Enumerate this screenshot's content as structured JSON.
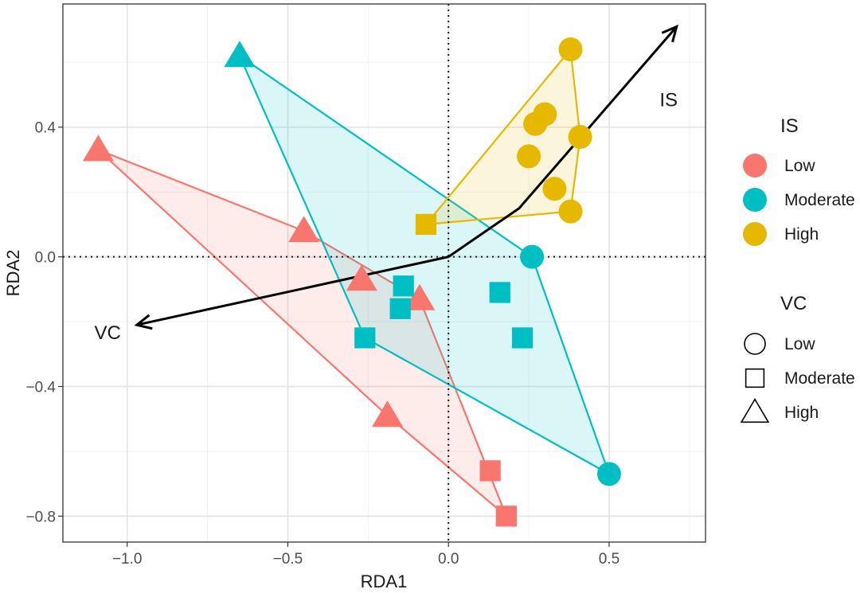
{
  "chart_data": {
    "type": "scatter",
    "title": "",
    "xlabel": "RDA1",
    "ylabel": "RDA2",
    "xlim": [
      -1.2,
      0.8
    ],
    "ylim": [
      -0.88,
      0.78
    ],
    "x_ticks": [
      -1.0,
      -0.5,
      0.0,
      0.5
    ],
    "x_tick_labels": [
      "−1.0",
      "−0.5",
      "0.0",
      "0.5"
    ],
    "y_ticks": [
      -0.8,
      -0.4,
      0.0,
      0.4
    ],
    "y_tick_labels": [
      "−0.8",
      "−0.4",
      "0.0",
      "0.4"
    ],
    "grid": true,
    "reference_lines": {
      "x": 0,
      "y": 0,
      "style": "dotted"
    },
    "groups": [
      {
        "name": "Low",
        "color": "#f8766d",
        "points": [
          {
            "x": -1.09,
            "y": 0.33,
            "shape": "High"
          },
          {
            "x": -0.45,
            "y": 0.08,
            "shape": "High"
          },
          {
            "x": -0.27,
            "y": -0.07,
            "shape": "High"
          },
          {
            "x": -0.09,
            "y": -0.13,
            "shape": "High"
          },
          {
            "x": -0.19,
            "y": -0.49,
            "shape": "High"
          },
          {
            "x": 0.13,
            "y": -0.66,
            "shape": "Moderate"
          },
          {
            "x": 0.18,
            "y": -0.8,
            "shape": "Moderate"
          }
        ],
        "hull": [
          [
            -1.09,
            0.33
          ],
          [
            -0.45,
            0.08
          ],
          [
            -0.09,
            -0.13
          ],
          [
            0.18,
            -0.8
          ],
          [
            -0.19,
            -0.49
          ]
        ]
      },
      {
        "name": "Moderate",
        "color": "#00bfc4",
        "points": [
          {
            "x": -0.65,
            "y": 0.62,
            "shape": "High"
          },
          {
            "x": 0.26,
            "y": 0.0,
            "shape": "Low"
          },
          {
            "x": 0.5,
            "y": -0.67,
            "shape": "Low"
          },
          {
            "x": -0.26,
            "y": -0.25,
            "shape": "Moderate"
          },
          {
            "x": -0.14,
            "y": -0.09,
            "shape": "Moderate"
          },
          {
            "x": -0.15,
            "y": -0.16,
            "shape": "Moderate"
          },
          {
            "x": 0.16,
            "y": -0.11,
            "shape": "Moderate"
          },
          {
            "x": 0.23,
            "y": -0.25,
            "shape": "Moderate"
          }
        ],
        "hull": [
          [
            -0.65,
            0.62
          ],
          [
            0.26,
            0.0
          ],
          [
            0.5,
            -0.67
          ],
          [
            -0.26,
            -0.25
          ]
        ]
      },
      {
        "name": "High",
        "color": "#e6b800",
        "points": [
          {
            "x": 0.38,
            "y": 0.64,
            "shape": "Low"
          },
          {
            "x": 0.3,
            "y": 0.44,
            "shape": "Low"
          },
          {
            "x": 0.27,
            "y": 0.41,
            "shape": "Low"
          },
          {
            "x": 0.41,
            "y": 0.37,
            "shape": "Low"
          },
          {
            "x": 0.25,
            "y": 0.31,
            "shape": "Low"
          },
          {
            "x": 0.33,
            "y": 0.21,
            "shape": "Low"
          },
          {
            "x": 0.38,
            "y": 0.14,
            "shape": "Low"
          },
          {
            "x": -0.07,
            "y": 0.1,
            "shape": "Moderate"
          }
        ],
        "hull": [
          [
            0.38,
            0.64
          ],
          [
            0.41,
            0.37
          ],
          [
            0.38,
            0.14
          ],
          [
            -0.07,
            0.1
          ]
        ]
      }
    ],
    "arrows": [
      {
        "label": "IS",
        "from": [
          0,
          0
        ],
        "via": [
          0.22,
          0.15
        ],
        "to": [
          0.71,
          0.71
        ]
      },
      {
        "label": "VC",
        "from": [
          0,
          0
        ],
        "to": [
          -0.97,
          -0.21
        ]
      }
    ],
    "legend": {
      "placement": "right",
      "color_title": "IS",
      "color_items": [
        {
          "label": "Low",
          "color": "#f8766d"
        },
        {
          "label": "Moderate",
          "color": "#00bfc4"
        },
        {
          "label": "High",
          "color": "#e6b800"
        }
      ],
      "shape_title": "VC",
      "shape_items": [
        {
          "label": "Low",
          "shape": "circle"
        },
        {
          "label": "Moderate",
          "shape": "square"
        },
        {
          "label": "High",
          "shape": "triangle"
        }
      ]
    }
  }
}
